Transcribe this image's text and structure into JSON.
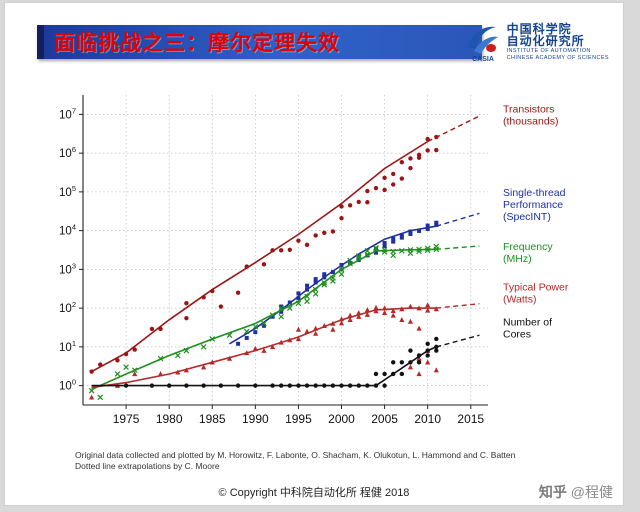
{
  "slide": {
    "title": "面临挑战之三：摩尔定理失效",
    "notes_line1": "Original data collected and plotted by M. Horowitz, F. Labonte, O. Shacham, K. Olukotun, L. Hammond and C. Batten",
    "notes_line2": "Dotted line extrapolations by C. Moore",
    "footer_copyright": "© Copyright 中科院自动化所 程健 2018",
    "watermark": {
      "brand": "知乎",
      "handle": "@程健"
    },
    "logo": {
      "mark": "CASIA",
      "cn_line1": "中国科学院",
      "cn_line2": "自动化研究所",
      "en_line1": "INSTITUTE OF AUTOMATION",
      "en_line2": "CHINESE ACADEMY OF SCIENCES"
    }
  },
  "chart_data": {
    "type": "scatter",
    "title": "",
    "xlabel": "",
    "ylabel": "",
    "x_range": [
      1970,
      2017
    ],
    "y_log_range": [
      -0.5,
      7.5
    ],
    "x_ticks": [
      1975,
      1980,
      1985,
      1990,
      1995,
      2000,
      2005,
      2010,
      2015
    ],
    "y_tick_exponents": [
      0,
      1,
      2,
      3,
      4,
      5,
      6,
      7
    ],
    "grid": "dotted",
    "legend_position": "right",
    "series": [
      {
        "name": "Transistors (thousands)",
        "legend_lines": [
          "Transistors",
          "(thousands)"
        ],
        "color": "#9b1515",
        "marker": "circle",
        "legend_log_y": 7.05,
        "points": [
          [
            1971,
            2.3
          ],
          [
            1972,
            3.5
          ],
          [
            1974,
            4.5
          ],
          [
            1975,
            6.5
          ],
          [
            1976,
            8.5
          ],
          [
            1978,
            29
          ],
          [
            1979,
            29
          ],
          [
            1982,
            55
          ],
          [
            1982,
            134
          ],
          [
            1984,
            190
          ],
          [
            1985,
            275
          ],
          [
            1986,
            110
          ],
          [
            1988,
            250
          ],
          [
            1989,
            1180
          ],
          [
            1991,
            1350
          ],
          [
            1992,
            3100
          ],
          [
            1993,
            3100
          ],
          [
            1994,
            3200
          ],
          [
            1995,
            5500
          ],
          [
            1996,
            4300
          ],
          [
            1997,
            7500
          ],
          [
            1998,
            8800
          ],
          [
            1999,
            9500
          ],
          [
            2000,
            21000
          ],
          [
            2000,
            42000
          ],
          [
            2001,
            45000
          ],
          [
            2002,
            55000
          ],
          [
            2003,
            54000
          ],
          [
            2003,
            105000
          ],
          [
            2004,
            125000
          ],
          [
            2005,
            230000
          ],
          [
            2005,
            112000
          ],
          [
            2006,
            291000
          ],
          [
            2006,
            155000
          ],
          [
            2007,
            582000
          ],
          [
            2007,
            220000
          ],
          [
            2008,
            731000
          ],
          [
            2008,
            410000
          ],
          [
            2009,
            904000
          ],
          [
            2009,
            760000
          ],
          [
            2010,
            1170000
          ],
          [
            2010,
            2300000
          ],
          [
            2011,
            1200000
          ],
          [
            2011,
            2600000
          ]
        ],
        "trend": [
          [
            1971,
            2.3
          ],
          [
            1975,
            7
          ],
          [
            1980,
            50
          ],
          [
            1985,
            300
          ],
          [
            1990,
            1500
          ],
          [
            1995,
            8000
          ],
          [
            2000,
            50000
          ],
          [
            2005,
            400000
          ],
          [
            2010,
            2000000
          ]
        ],
        "trend_dashed": [
          [
            2010,
            2000000
          ],
          [
            2016,
            9000000
          ]
        ]
      },
      {
        "name": "Single-thread Performance (SpecINT)",
        "legend_lines": [
          "Single-thread",
          "Performance",
          "(SpecINT)"
        ],
        "color": "#20309f",
        "marker": "square",
        "legend_log_y": 4.9,
        "points": [
          [
            1988,
            12
          ],
          [
            1989,
            17
          ],
          [
            1990,
            24
          ],
          [
            1991,
            35
          ],
          [
            1992,
            60
          ],
          [
            1993,
            80
          ],
          [
            1993,
            110
          ],
          [
            1994,
            140
          ],
          [
            1995,
            180
          ],
          [
            1995,
            240
          ],
          [
            1996,
            300
          ],
          [
            1996,
            380
          ],
          [
            1997,
            460
          ],
          [
            1997,
            560
          ],
          [
            1998,
            620
          ],
          [
            1998,
            750
          ],
          [
            1999,
            850
          ],
          [
            2000,
            1000
          ],
          [
            2000,
            1300
          ],
          [
            2001,
            1450
          ],
          [
            2002,
            1750
          ],
          [
            2002,
            2100
          ],
          [
            2003,
            2300
          ],
          [
            2004,
            2700
          ],
          [
            2004,
            3300
          ],
          [
            2005,
            4000
          ],
          [
            2005,
            4800
          ],
          [
            2006,
            5200
          ],
          [
            2006,
            6200
          ],
          [
            2007,
            6600
          ],
          [
            2007,
            7600
          ],
          [
            2008,
            8200
          ],
          [
            2008,
            9500
          ],
          [
            2009,
            9800
          ],
          [
            2010,
            11000
          ],
          [
            2010,
            13500
          ],
          [
            2011,
            14000
          ],
          [
            2011,
            16000
          ]
        ],
        "trend": [
          [
            1987,
            12
          ],
          [
            1990,
            30
          ],
          [
            1993,
            90
          ],
          [
            1996,
            300
          ],
          [
            1999,
            900
          ],
          [
            2002,
            2500
          ],
          [
            2005,
            6000
          ],
          [
            2008,
            10000
          ],
          [
            2011,
            13000
          ]
        ],
        "trend_dashed": [
          [
            2011,
            13000
          ],
          [
            2016,
            28000
          ]
        ]
      },
      {
        "name": "Frequency (MHz)",
        "legend_lines": [
          "Frequency",
          "(MHz)"
        ],
        "color": "#1f8f1f",
        "marker": "x",
        "legend_log_y": 3.5,
        "points": [
          [
            1971,
            0.74
          ],
          [
            1972,
            0.5
          ],
          [
            1974,
            2
          ],
          [
            1975,
            3
          ],
          [
            1976,
            2.5
          ],
          [
            1979,
            5
          ],
          [
            1981,
            6
          ],
          [
            1982,
            8
          ],
          [
            1984,
            10
          ],
          [
            1985,
            16
          ],
          [
            1987,
            20
          ],
          [
            1989,
            25
          ],
          [
            1990,
            33
          ],
          [
            1991,
            40
          ],
          [
            1992,
            66
          ],
          [
            1993,
            60
          ],
          [
            1993,
            100
          ],
          [
            1994,
            100
          ],
          [
            1995,
            133
          ],
          [
            1996,
            200
          ],
          [
            1996,
            150
          ],
          [
            1997,
            300
          ],
          [
            1997,
            233
          ],
          [
            1998,
            400
          ],
          [
            1998,
            450
          ],
          [
            1999,
            500
          ],
          [
            1999,
            600
          ],
          [
            2000,
            1000
          ],
          [
            2000,
            750
          ],
          [
            2001,
            1700
          ],
          [
            2001,
            1400
          ],
          [
            2002,
            2200
          ],
          [
            2002,
            2000
          ],
          [
            2003,
            3000
          ],
          [
            2003,
            2400
          ],
          [
            2004,
            3400
          ],
          [
            2004,
            3600
          ],
          [
            2005,
            3200
          ],
          [
            2005,
            2800
          ],
          [
            2006,
            2900
          ],
          [
            2006,
            2300
          ],
          [
            2007,
            3000
          ],
          [
            2008,
            3200
          ],
          [
            2008,
            2600
          ],
          [
            2009,
            3300
          ],
          [
            2009,
            2900
          ],
          [
            2010,
            3500
          ],
          [
            2010,
            3100
          ],
          [
            2011,
            3300
          ],
          [
            2011,
            3900
          ]
        ],
        "trend": [
          [
            1971,
            0.8
          ],
          [
            1975,
            2
          ],
          [
            1980,
            6
          ],
          [
            1985,
            16
          ],
          [
            1990,
            40
          ],
          [
            1995,
            150
          ],
          [
            2000,
            1000
          ],
          [
            2004,
            3000
          ],
          [
            2008,
            3200
          ],
          [
            2011,
            3300
          ]
        ],
        "trend_dashed": [
          [
            2011,
            3300
          ],
          [
            2016,
            4000
          ]
        ]
      },
      {
        "name": "Typical Power (Watts)",
        "legend_lines": [
          "Typical Power",
          "(Watts)"
        ],
        "color": "#b52a2a",
        "marker": "triangle",
        "legend_log_y": 2.45,
        "points": [
          [
            1971,
            0.5
          ],
          [
            1974,
            1
          ],
          [
            1976,
            2
          ],
          [
            1979,
            2
          ],
          [
            1981,
            2.2
          ],
          [
            1982,
            2.5
          ],
          [
            1984,
            3
          ],
          [
            1985,
            4
          ],
          [
            1987,
            5
          ],
          [
            1989,
            7
          ],
          [
            1990,
            9
          ],
          [
            1991,
            8
          ],
          [
            1992,
            10
          ],
          [
            1993,
            13
          ],
          [
            1994,
            15
          ],
          [
            1995,
            16
          ],
          [
            1995,
            28
          ],
          [
            1996,
            25
          ],
          [
            1997,
            30
          ],
          [
            1997,
            22
          ],
          [
            1998,
            35
          ],
          [
            1999,
            40
          ],
          [
            1999,
            28
          ],
          [
            2000,
            52
          ],
          [
            2000,
            41
          ],
          [
            2001,
            65
          ],
          [
            2001,
            50
          ],
          [
            2002,
            75
          ],
          [
            2002,
            60
          ],
          [
            2003,
            90
          ],
          [
            2003,
            68
          ],
          [
            2004,
            103
          ],
          [
            2004,
            84
          ],
          [
            2005,
            100
          ],
          [
            2005,
            76
          ],
          [
            2006,
            85
          ],
          [
            2006,
            65
          ],
          [
            2007,
            95
          ],
          [
            2007,
            50
          ],
          [
            2008,
            110
          ],
          [
            2008,
            45
          ],
          [
            2009,
            100
          ],
          [
            2009,
            30
          ],
          [
            2010,
            120
          ],
          [
            2010,
            87
          ],
          [
            2011,
            95
          ],
          [
            2008,
            3
          ],
          [
            2009,
            2
          ],
          [
            2009,
            5
          ],
          [
            2010,
            4
          ],
          [
            2011,
            2.5
          ],
          [
            2010,
            8
          ]
        ],
        "trend": [
          [
            1971,
            0.9
          ],
          [
            1975,
            1.2
          ],
          [
            1980,
            2
          ],
          [
            1985,
            4
          ],
          [
            1990,
            8
          ],
          [
            1995,
            18
          ],
          [
            2000,
            50
          ],
          [
            2004,
            90
          ],
          [
            2008,
            100
          ],
          [
            2011,
            100
          ]
        ],
        "trend_dashed": [
          [
            2011,
            100
          ],
          [
            2016,
            130
          ]
        ]
      },
      {
        "name": "Number of Cores",
        "legend_lines": [
          "Number of",
          "Cores"
        ],
        "color": "#111111",
        "marker": "circle",
        "legend_log_y": 1.55,
        "points": [
          [
            1975,
            1
          ],
          [
            1978,
            1
          ],
          [
            1980,
            1
          ],
          [
            1982,
            1
          ],
          [
            1984,
            1
          ],
          [
            1986,
            1
          ],
          [
            1988,
            1
          ],
          [
            1990,
            1
          ],
          [
            1992,
            1
          ],
          [
            1993,
            1
          ],
          [
            1994,
            1
          ],
          [
            1995,
            1
          ],
          [
            1996,
            1
          ],
          [
            1997,
            1
          ],
          [
            1998,
            1
          ],
          [
            1999,
            1
          ],
          [
            2000,
            1
          ],
          [
            2001,
            1
          ],
          [
            2002,
            1
          ],
          [
            2003,
            1
          ],
          [
            2004,
            1
          ],
          [
            2004,
            2
          ],
          [
            2005,
            1
          ],
          [
            2005,
            2
          ],
          [
            2006,
            2
          ],
          [
            2006,
            4
          ],
          [
            2007,
            2
          ],
          [
            2007,
            4
          ],
          [
            2008,
            4
          ],
          [
            2008,
            8
          ],
          [
            2009,
            4
          ],
          [
            2009,
            6
          ],
          [
            2010,
            6
          ],
          [
            2010,
            8
          ],
          [
            2010,
            12
          ],
          [
            2011,
            8
          ],
          [
            2011,
            10
          ],
          [
            2011,
            16
          ]
        ],
        "trend": [
          [
            1971,
            1
          ],
          [
            2004,
            1
          ],
          [
            2006,
            2
          ],
          [
            2008,
            4
          ],
          [
            2010,
            8
          ],
          [
            2011,
            10
          ]
        ],
        "trend_dashed": [
          [
            2011,
            10
          ],
          [
            2016,
            20
          ]
        ]
      }
    ]
  }
}
